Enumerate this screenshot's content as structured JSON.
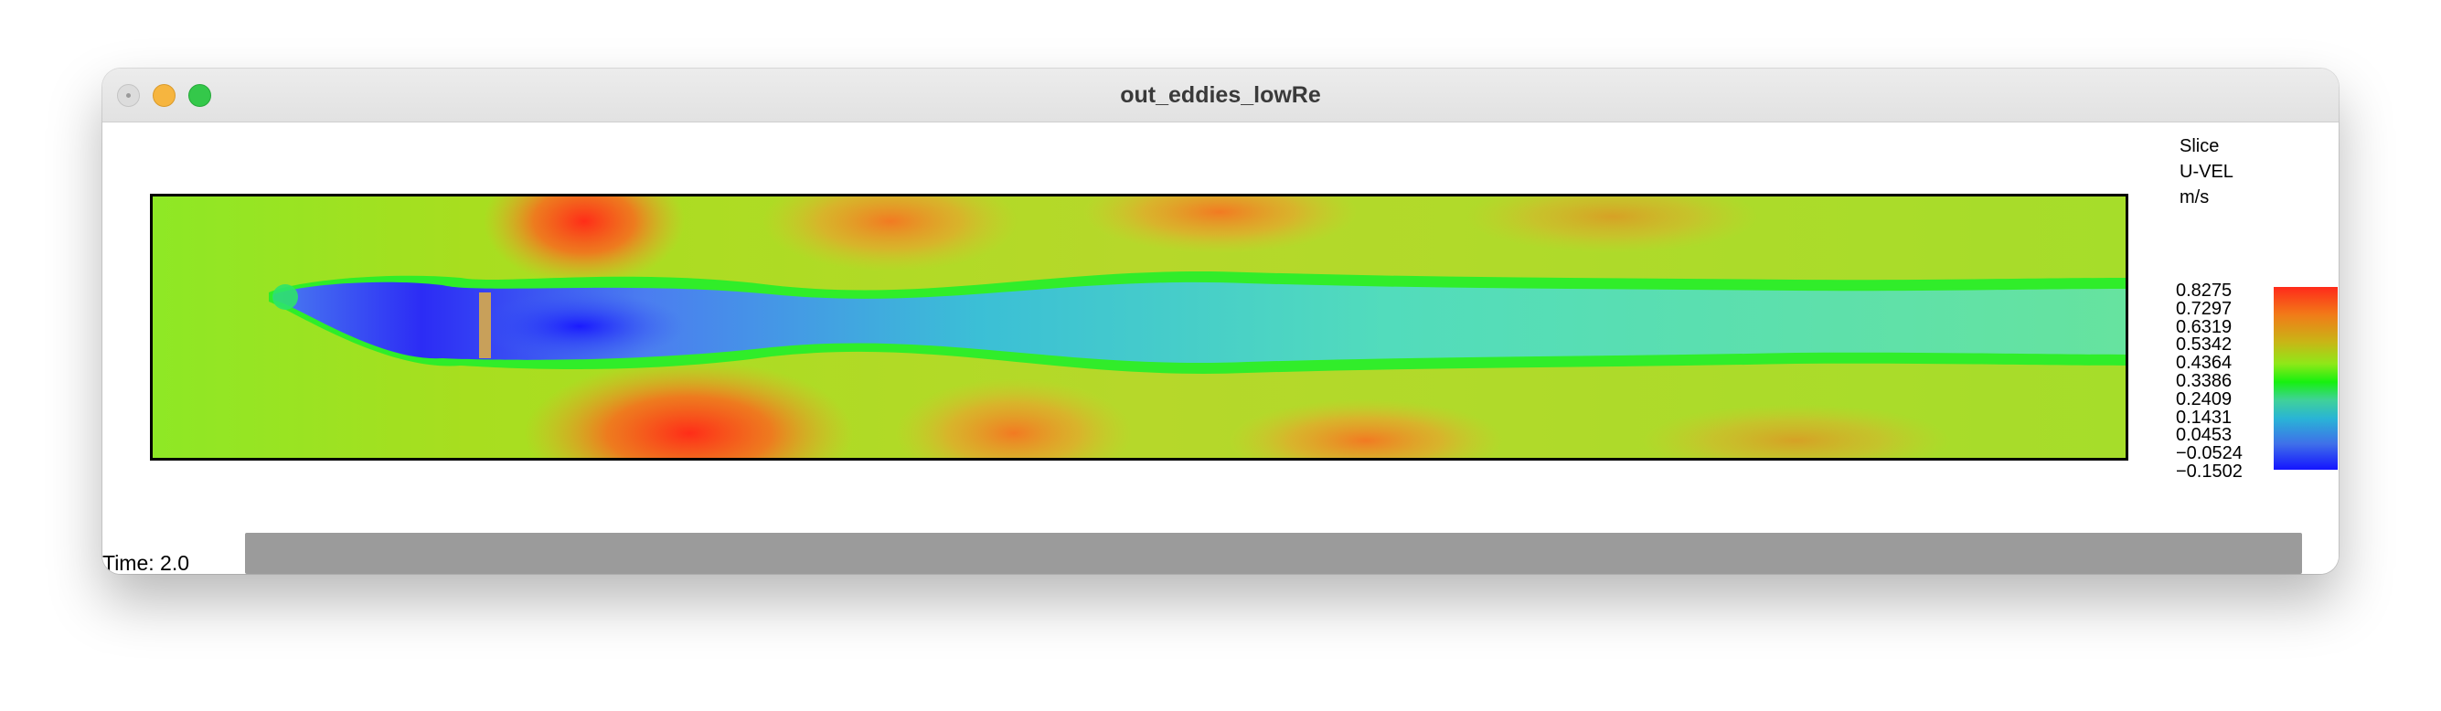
{
  "window": {
    "title": "out_eddies_lowRe"
  },
  "legend": {
    "line1": "Slice",
    "line2": "U-VEL",
    "line3": "m/s",
    "values": [
      "0.8275",
      "0.7297",
      "0.6319",
      "0.5342",
      "0.4364",
      "0.3386",
      "0.2409",
      "0.1431",
      "0.0453",
      "−0.0524",
      "−0.1502"
    ],
    "colors": [
      "#ff2a1a",
      "#f27a18",
      "#c9b516",
      "#8fe818",
      "#17f010",
      "#40d19a",
      "#29b4d6",
      "#3f6fe9",
      "#1414ff"
    ]
  },
  "status": {
    "time_label": "Time: 2.0"
  }
}
